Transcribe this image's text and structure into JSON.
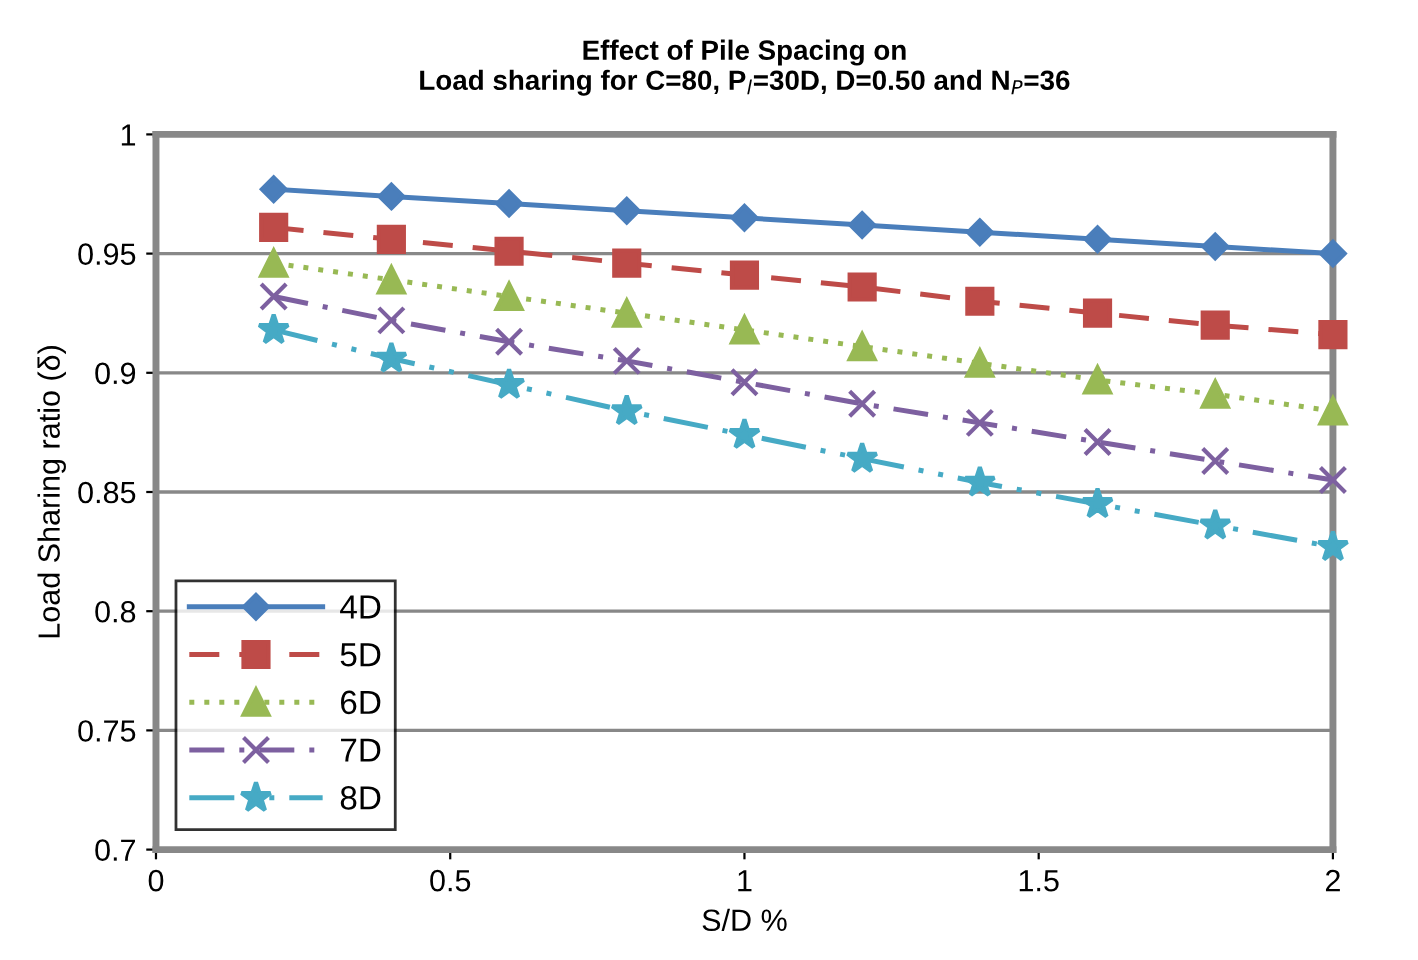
{
  "chart_data": {
    "type": "line",
    "title": "Effect of Pile Spacing on\nLoad sharing for C=80, P$_{l}$=30D, D=0.50 and N$_{P}$=36",
    "xlabel": "S/D %",
    "ylabel": "Load Sharing ratio (δ)",
    "x": [
      0.2,
      0.4,
      0.6,
      0.8,
      1.0,
      1.2,
      1.4,
      1.6,
      1.8,
      2.0
    ],
    "xlim": [
      0,
      2
    ],
    "xticks": [
      0,
      0.5,
      1,
      1.5,
      2
    ],
    "ylim": [
      0.7,
      1
    ],
    "yticks": [
      0.7,
      0.75,
      0.8,
      0.85,
      0.9,
      0.95,
      1
    ],
    "grid": "y",
    "legend": "bottom left",
    "series": [
      {
        "name": "4D",
        "color": "#4a7ebb",
        "marker": "diamond",
        "line_style": "solid",
        "values": [
          0.977,
          0.974,
          0.971,
          0.968,
          0.965,
          0.962,
          0.959,
          0.956,
          0.953,
          0.95
        ]
      },
      {
        "name": "5D",
        "color": "#be4b48",
        "marker": "square",
        "line_style": "dashed",
        "values": [
          0.961,
          0.956,
          0.951,
          0.946,
          0.941,
          0.936,
          0.93,
          0.925,
          0.92,
          0.916
        ]
      },
      {
        "name": "6D",
        "color": "#98b954",
        "marker": "triangle",
        "line_style": "dotted",
        "values": [
          0.946,
          0.939,
          0.932,
          0.925,
          0.918,
          0.911,
          0.904,
          0.897,
          0.891,
          0.884
        ]
      },
      {
        "name": "7D",
        "color": "#7d60a0",
        "marker": "cross",
        "line_style": "dashdot",
        "values": [
          0.932,
          0.922,
          0.913,
          0.905,
          0.896,
          0.887,
          0.879,
          0.871,
          0.863,
          0.855
        ]
      },
      {
        "name": "8D",
        "color": "#46aac5",
        "marker": "star",
        "line_style": "dashdotdot",
        "values": [
          0.918,
          0.906,
          0.895,
          0.884,
          0.874,
          0.864,
          0.854,
          0.845,
          0.836,
          0.827
        ]
      }
    ]
  }
}
